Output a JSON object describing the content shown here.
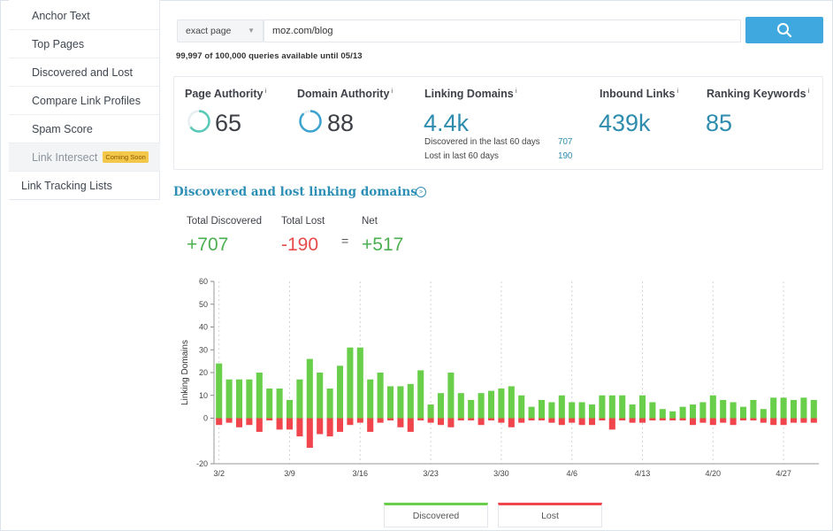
{
  "sidebar": {
    "items": [
      {
        "label": "Anchor Text"
      },
      {
        "label": "Top Pages"
      },
      {
        "label": "Discovered and Lost"
      },
      {
        "label": "Compare Link Profiles"
      },
      {
        "label": "Spam Score"
      },
      {
        "label": "Link Intersect",
        "badge": "Coming Soon"
      }
    ],
    "tracking": "Link Tracking Lists"
  },
  "search": {
    "scope": "exact page",
    "query": "moz.com/blog",
    "quota": "99,997 of 100,000 queries available until 05/13"
  },
  "metrics": {
    "page_authority": {
      "label": "Page Authority",
      "value": "65",
      "score": 65
    },
    "domain_authority": {
      "label": "Domain Authority",
      "value": "88",
      "score": 88
    },
    "linking_domains": {
      "label": "Linking Domains",
      "value": "4.4k",
      "discovered_label": "Discovered in the last 60 days",
      "discovered_value": "707",
      "lost_label": "Lost in last 60 days",
      "lost_value": "190"
    },
    "inbound_links": {
      "label": "Inbound Links",
      "value": "439k"
    },
    "ranking_keywords": {
      "label": "Ranking Keywords",
      "value": "85"
    },
    "info_marker": "i"
  },
  "section": {
    "title": "Discovered and lost linking domains",
    "info_arrow": ">",
    "total_discovered_label": "Total Discovered",
    "total_discovered_value": "+707",
    "total_lost_label": "Total Lost",
    "total_lost_value": "-190",
    "equals": "=",
    "net_label": "Net",
    "net_value": "+517"
  },
  "colors": {
    "accent": "#3fa9df",
    "discovered": "#69cf4b",
    "lost": "#f0454c",
    "title": "#2d8fb5"
  },
  "chart_data": {
    "type": "bar",
    "ylabel": "Linking Domains",
    "ylim": [
      -20,
      60
    ],
    "yticks": [
      -20,
      0,
      10,
      20,
      30,
      40,
      50,
      60
    ],
    "xtick_labels": [
      "3/2",
      "3/9",
      "3/16",
      "3/23",
      "3/30",
      "4/6",
      "4/13",
      "4/20",
      "4/27"
    ],
    "xtick_index": [
      0,
      7,
      14,
      21,
      28,
      35,
      42,
      49,
      56
    ],
    "series": [
      {
        "name": "Discovered",
        "values": [
          24,
          17,
          17,
          17,
          20,
          13,
          13,
          8,
          17,
          26,
          20,
          13,
          23,
          31,
          31,
          17,
          20,
          14,
          14,
          15,
          21,
          6,
          11,
          20,
          11,
          8,
          11,
          12,
          13,
          14,
          10,
          5,
          8,
          7,
          10,
          7,
          7,
          6,
          10,
          10,
          10,
          6,
          10,
          7,
          4,
          3,
          5,
          6,
          7,
          10,
          8,
          7,
          5,
          8,
          4,
          9,
          9,
          8,
          9,
          8
        ]
      },
      {
        "name": "Lost",
        "values": [
          -3,
          -2,
          -4,
          -3,
          -6,
          -1,
          -5,
          -5,
          -8,
          -13,
          -7,
          -8,
          -6,
          -3,
          -2,
          -6,
          -2,
          -1,
          -4,
          -6,
          -1,
          -2,
          -3,
          -4,
          -1,
          -1,
          -3,
          -1,
          -2,
          -4,
          -2,
          -1,
          -1,
          -2,
          -3,
          -2,
          -3,
          -3,
          -1,
          -5,
          -1,
          -2,
          -2,
          -1,
          -1,
          -1,
          -1,
          -3,
          -2,
          -3,
          -2,
          -3,
          -1,
          -1,
          -2,
          -3,
          -3,
          -2,
          -2,
          -2
        ]
      }
    ]
  }
}
